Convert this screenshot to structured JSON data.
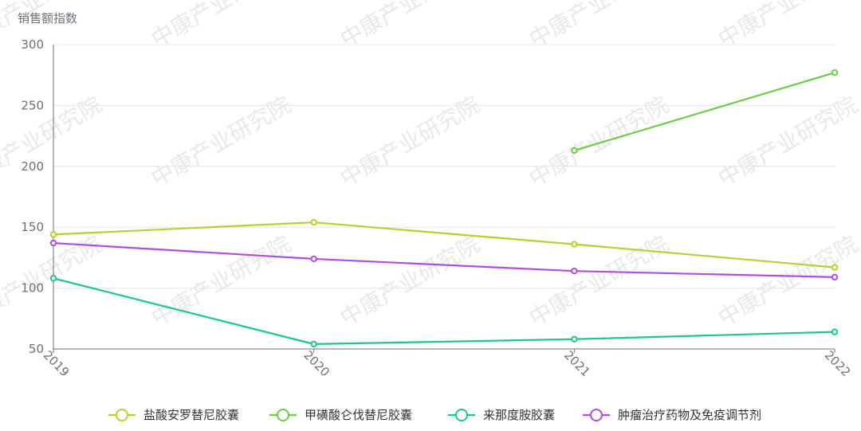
{
  "chart_data": {
    "type": "line",
    "title": "",
    "ylabel": "销售额指数",
    "xlabel": "",
    "categories": [
      "2019",
      "2020",
      "2021",
      "2022"
    ],
    "ylim": [
      50,
      300
    ],
    "yticks": [
      50,
      100,
      150,
      200,
      250,
      300
    ],
    "grid": true,
    "legend_position": "bottom",
    "series": [
      {
        "name": "盐酸安罗替尼胶囊",
        "color": "#b5d12e",
        "values": [
          144,
          154,
          136,
          117
        ]
      },
      {
        "name": "甲磺酸仑伐替尼胶囊",
        "color": "#6dcc47",
        "values": [
          null,
          null,
          213,
          277
        ]
      },
      {
        "name": "来那度胺胶囊",
        "color": "#1fc48f",
        "values": [
          108,
          54,
          58,
          64
        ]
      },
      {
        "name": "肿瘤治疗药物及免疫调节剂",
        "color": "#b04ee0",
        "values": [
          137,
          124,
          114,
          109
        ]
      }
    ]
  },
  "watermark": "中康产业研究院"
}
